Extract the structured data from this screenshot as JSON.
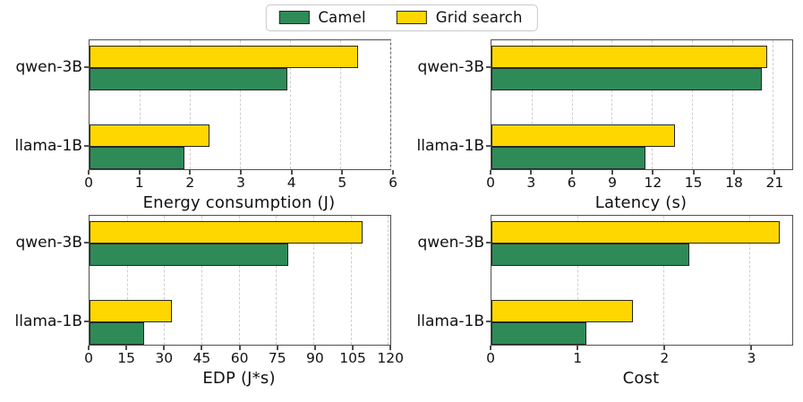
{
  "legend": {
    "items": [
      {
        "label": "Camel",
        "color": "#2e8b57"
      },
      {
        "label": "Grid search",
        "color": "#ffd700"
      }
    ],
    "position": "top-center"
  },
  "colors": {
    "camel": "#2e8b57",
    "grid_search": "#ffd700",
    "bar_edge": "#262626",
    "spine": "#4f4f4f",
    "gridline": "#cdcdcd",
    "background": "#ffffff"
  },
  "chart_data": [
    {
      "id": "energy",
      "type": "bar",
      "orientation": "horizontal",
      "xlabel": "Energy consumption (J)",
      "categories": [
        "qwen-3B",
        "llama-1B"
      ],
      "series": [
        {
          "name": "Grid search",
          "color": "#ffd700",
          "values": [
            5.35,
            2.4
          ]
        },
        {
          "name": "Camel",
          "color": "#2e8b57",
          "values": [
            3.95,
            1.9
          ]
        }
      ],
      "xlim": [
        0,
        6
      ],
      "xticks": [
        0,
        1,
        2,
        3,
        4,
        5,
        6
      ],
      "grid": "vertical-dashed"
    },
    {
      "id": "latency",
      "type": "bar",
      "orientation": "horizontal",
      "xlabel": "Latency (s)",
      "categories": [
        "qwen-3B",
        "llama-1B"
      ],
      "series": [
        {
          "name": "Grid search",
          "color": "#ffd700",
          "values": [
            20.6,
            13.7
          ]
        },
        {
          "name": "Camel",
          "color": "#2e8b57",
          "values": [
            20.2,
            11.5
          ]
        }
      ],
      "xlim": [
        0,
        22.5
      ],
      "xticks": [
        0,
        3,
        6,
        9,
        12,
        15,
        18,
        21
      ],
      "grid": "vertical-dashed"
    },
    {
      "id": "edp",
      "type": "bar",
      "orientation": "horizontal",
      "xlabel": "EDP (J*s)",
      "categories": [
        "qwen-3B",
        "llama-1B"
      ],
      "series": [
        {
          "name": "Grid search",
          "color": "#ffd700",
          "values": [
            110,
            33
          ]
        },
        {
          "name": "Camel",
          "color": "#2e8b57",
          "values": [
            80,
            22
          ]
        }
      ],
      "xlim": [
        0,
        121
      ],
      "xticks": [
        0,
        15,
        30,
        45,
        60,
        75,
        90,
        105,
        120
      ],
      "grid": "vertical-dashed"
    },
    {
      "id": "cost",
      "type": "bar",
      "orientation": "horizontal",
      "xlabel": "Cost",
      "categories": [
        "qwen-3B",
        "llama-1B"
      ],
      "series": [
        {
          "name": "Grid search",
          "color": "#ffd700",
          "values": [
            3.35,
            1.65
          ]
        },
        {
          "name": "Camel",
          "color": "#2e8b57",
          "values": [
            2.3,
            1.1
          ]
        }
      ],
      "xlim": [
        0,
        3.5
      ],
      "xticks": [
        0,
        1,
        2,
        3
      ],
      "grid": "vertical-dashed"
    }
  ]
}
